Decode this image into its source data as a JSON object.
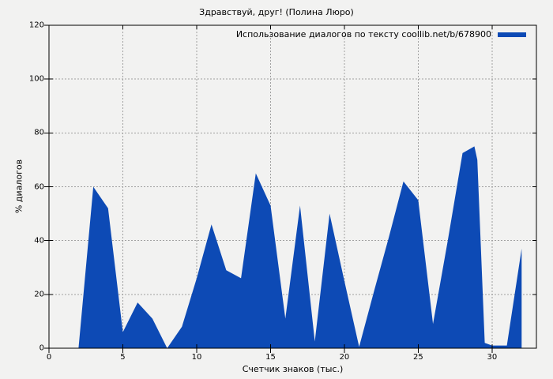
{
  "page": {
    "background": "#f2f2f1"
  },
  "title": "Здравствуй, друг! (Полина Люро)",
  "legend": {
    "label": "Использование диалогов по тексту coollib.net/b/678900",
    "swatch_color": "#0d4ab5"
  },
  "axes": {
    "x": {
      "label": "Счетчик знаков (тыс.)",
      "ticks": [
        0,
        5,
        10,
        15,
        20,
        25,
        30
      ],
      "min": 0,
      "max": 33
    },
    "y": {
      "label": "% диалогов",
      "ticks": [
        0,
        20,
        40,
        60,
        80,
        100,
        120
      ],
      "min": 0,
      "max": 120
    }
  },
  "chart_data": {
    "type": "area",
    "title": "Здравствуй, друг! (Полина Люро)",
    "xlabel": "Счетчик знаков (тыс.)",
    "ylabel": "% диалогов",
    "xlim": [
      0,
      33
    ],
    "ylim": [
      0,
      120
    ],
    "grid": true,
    "legend_position": "top-right",
    "fill_color": "#0d4ab5",
    "grid_color": "#a0a0a0",
    "axis_color": "#000000",
    "series": [
      {
        "name": "Использование диалогов по тексту coollib.net/b/678900",
        "points": [
          [
            2,
            0
          ],
          [
            3,
            60
          ],
          [
            3.5,
            56
          ],
          [
            4,
            52
          ],
          [
            5,
            6
          ],
          [
            6,
            17
          ],
          [
            7,
            11
          ],
          [
            8,
            0
          ],
          [
            9,
            8
          ],
          [
            10,
            26
          ],
          [
            11,
            46
          ],
          [
            12,
            29
          ],
          [
            13,
            26
          ],
          [
            14,
            65
          ],
          [
            15,
            53
          ],
          [
            16,
            11
          ],
          [
            17,
            53
          ],
          [
            18,
            2.5
          ],
          [
            19,
            50
          ],
          [
            20,
            25
          ],
          [
            21,
            0.5
          ],
          [
            22,
            21
          ],
          [
            23,
            41
          ],
          [
            24,
            62
          ],
          [
            25,
            55
          ],
          [
            26,
            9
          ],
          [
            27,
            40
          ],
          [
            28,
            72.5
          ],
          [
            28.8,
            75
          ],
          [
            29,
            70
          ],
          [
            29.5,
            2
          ],
          [
            30,
            1
          ],
          [
            31,
            1
          ],
          [
            32,
            37
          ]
        ]
      }
    ]
  }
}
